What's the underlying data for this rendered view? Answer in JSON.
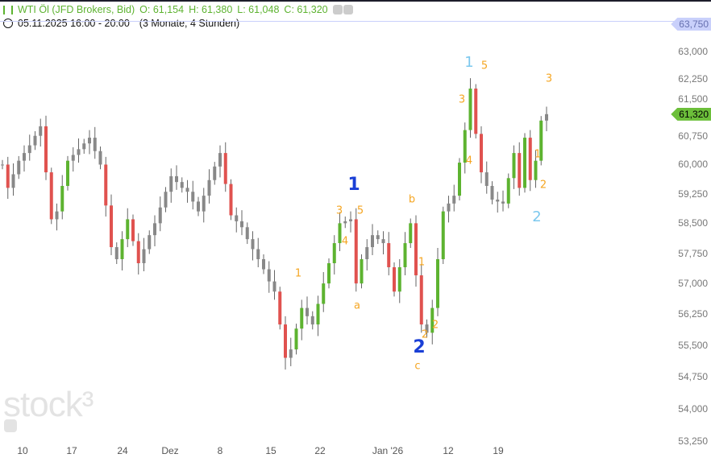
{
  "header": {
    "title": "WTI Öl (JFD Brokers, Bid)",
    "open": "O: 61,154",
    "high": "H: 61,380",
    "low": "L: 61,048",
    "close": "C: 61,320",
    "date_range": "05.11.2025 16:00 - 20:00",
    "period": "(3 Monate, 4 Stunden)",
    "icons": [
      "indicator-icon",
      "eye-icon",
      "link-icon",
      "clock-icon"
    ]
  },
  "logo": "stock3",
  "colors": {
    "up": "#5db330",
    "down": "#e0524f",
    "neutral": "#888888",
    "last_tag": "#6cbf3a",
    "marker_tag": "#c9d0fb"
  },
  "price_tags": {
    "marker": "63,750",
    "last": "61,320"
  },
  "chart_data": {
    "type": "candlestick",
    "y_scale": "log",
    "ylim": [
      53.0,
      64.0
    ],
    "y_ticks": [
      "53,250",
      "54,000",
      "54,750",
      "55,500",
      "56,250",
      "57,000",
      "57,750",
      "58,500",
      "59,250",
      "60,000",
      "60,750",
      "61,500",
      "62,250",
      "63,000",
      "63,750"
    ],
    "x_ticks": [
      "10",
      "17",
      "24",
      "Dez",
      "8",
      "15",
      "22",
      "Jan '26",
      "12",
      "19"
    ],
    "closes": [
      60.0,
      59.4,
      59.75,
      60.1,
      60.3,
      60.5,
      60.75,
      61.0,
      59.8,
      58.6,
      58.8,
      59.45,
      60.1,
      60.25,
      60.4,
      60.55,
      60.7,
      60.35,
      60.0,
      58.95,
      57.9,
      57.6,
      58.1,
      58.6,
      58.05,
      57.5,
      57.85,
      58.2,
      58.5,
      58.9,
      59.3,
      59.7,
      59.55,
      59.4,
      59.3,
      59.05,
      58.8,
      59.2,
      59.6,
      59.95,
      60.3,
      59.5,
      58.7,
      58.55,
      58.4,
      58.1,
      57.85,
      57.6,
      57.35,
      57.05,
      56.8,
      56.0,
      55.2,
      55.4,
      55.9,
      56.4,
      56.2,
      56.0,
      56.5,
      57.0,
      57.5,
      58.0,
      58.5,
      58.55,
      58.6,
      57.0,
      57.6,
      57.9,
      58.2,
      58.1,
      58.0,
      57.4,
      56.8,
      57.4,
      58.0,
      58.5,
      57.2,
      56.0,
      55.8,
      56.4,
      57.6,
      58.8,
      59.0,
      59.2,
      60.05,
      60.9,
      62.0,
      60.8,
      59.8,
      59.45,
      59.1,
      59.05,
      59.0,
      59.65,
      60.3,
      59.4,
      60.7,
      59.6,
      60.1,
      61.15,
      61.32
    ],
    "annotations": [
      {
        "text": "1",
        "color": "#1a3fd6"
      },
      {
        "text": "2",
        "color": "#1a3fd6"
      },
      {
        "text": "1",
        "color": "#f5a623"
      },
      {
        "text": "2",
        "color": "#f5a623"
      },
      {
        "text": "3",
        "color": "#f5a623"
      },
      {
        "text": "5",
        "color": "#f5a623"
      },
      {
        "text": "4",
        "color": "#f5a623"
      },
      {
        "text": "a",
        "color": "#f5a623"
      },
      {
        "text": "b",
        "color": "#f5a623"
      },
      {
        "text": "1",
        "color": "#f5a623"
      },
      {
        "text": "2",
        "color": "#f5a623"
      },
      {
        "text": "c",
        "color": "#f5a623"
      },
      {
        "text": "1",
        "color": "#7cc8ee"
      },
      {
        "text": "5",
        "color": "#f5a623"
      },
      {
        "text": "3",
        "color": "#f5a623"
      },
      {
        "text": "4",
        "color": "#f5a623"
      },
      {
        "text": "3",
        "color": "#f5a623"
      },
      {
        "text": "1",
        "color": "#f5a623"
      },
      {
        "text": "2",
        "color": "#f5a623"
      },
      {
        "text": "2",
        "color": "#7cc8ee"
      }
    ]
  }
}
